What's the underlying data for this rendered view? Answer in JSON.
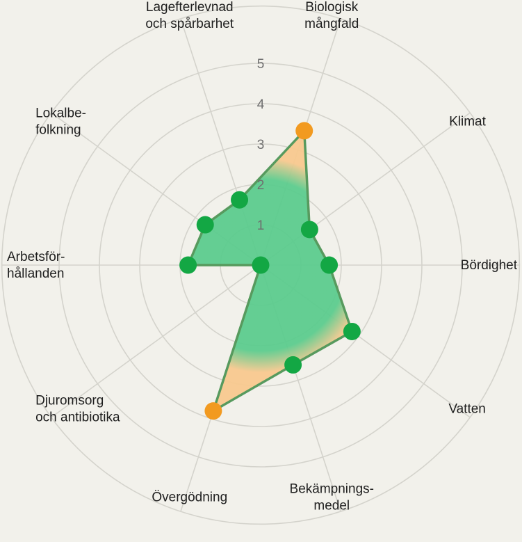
{
  "chart_data": {
    "type": "radar",
    "title": "",
    "axes": [
      {
        "label_lines": [
          "Biologisk",
          "mångfald"
        ],
        "value": 3.5
      },
      {
        "label_lines": [
          "Klimat"
        ],
        "value": 1.5
      },
      {
        "label_lines": [
          "Bördighet"
        ],
        "value": 1.7
      },
      {
        "label_lines": [
          "Vatten"
        ],
        "value": 2.8
      },
      {
        "label_lines": [
          "Bekämpnings-",
          "medel"
        ],
        "value": 2.6
      },
      {
        "label_lines": [
          "Övergödning"
        ],
        "value": 3.8
      },
      {
        "label_lines": [
          "Djuromsorg",
          "och antibiotika"
        ],
        "value": 0
      },
      {
        "label_lines": [
          "Arbetsför-",
          "hållanden"
        ],
        "value": 1.8
      },
      {
        "label_lines": [
          "Lokalbe-",
          "folkning"
        ],
        "value": 1.7
      },
      {
        "label_lines": [
          "Lagefterlevnad",
          "och spårbarhet"
        ],
        "value": 1.7
      }
    ],
    "rings": [
      1,
      2,
      3,
      4,
      5
    ],
    "tick_labels": [
      "1",
      "2",
      "3",
      "4",
      "5"
    ],
    "range": [
      0,
      5
    ],
    "highlight_threshold": 3,
    "colors": {
      "fill_inner": "#5ccc8e",
      "fill_outer": "#f8c98f",
      "outline": "#579a5e",
      "point_normal": "#13a744",
      "point_high": "#f29a20",
      "grid": "#d4d3cc",
      "background": "#f2f1eb"
    }
  }
}
